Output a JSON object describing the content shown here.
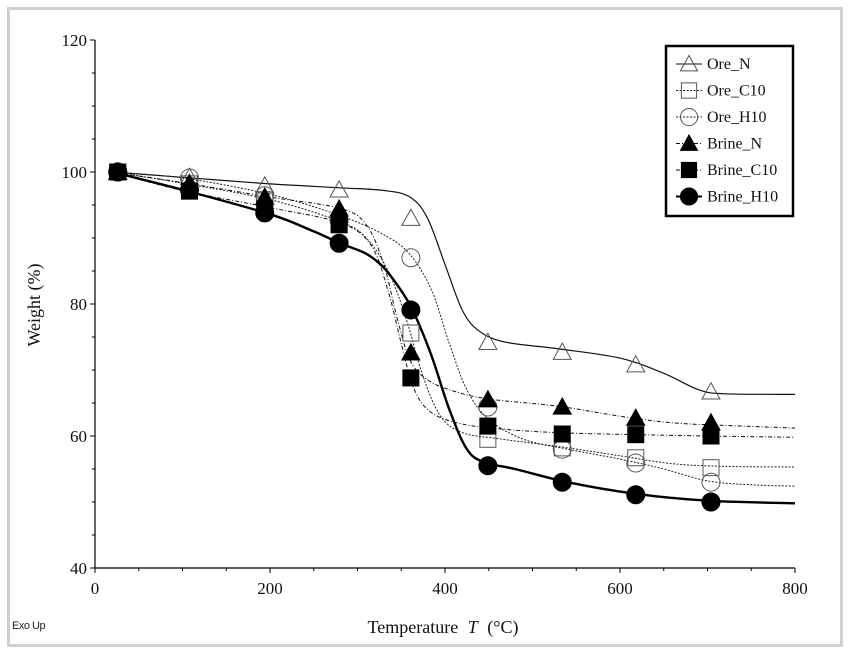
{
  "footer": {
    "exo_label": "Exo Up"
  },
  "chart_data": {
    "type": "line",
    "title": "",
    "xlabel": "Temperature",
    "xlabel_var": "T",
    "xlabel_unit": "(°C)",
    "ylabel": "Weight  (%)",
    "xlim": [
      0,
      800
    ],
    "ylim": [
      40,
      120
    ],
    "xticks": [
      0,
      200,
      400,
      600,
      800
    ],
    "yticks": [
      40,
      60,
      80,
      100,
      120
    ],
    "x_minor_step": 50,
    "y_minor_step": 5,
    "grid": false,
    "legend_position": "top-right",
    "marker_x": [
      26,
      108,
      194,
      279,
      361,
      449,
      534,
      618,
      704
    ],
    "series": [
      {
        "name": "Ore_N",
        "marker": "triangle-open",
        "line": "solid-thin",
        "values": [
          100,
          99.2,
          97.9,
          97.3,
          93.0,
          74.2,
          72.7,
          70.8,
          66.7
        ],
        "curve": [
          [
            20,
            100
          ],
          [
            100,
            99.2
          ],
          [
            200,
            98.2
          ],
          [
            280,
            97.6
          ],
          [
            330,
            97.2
          ],
          [
            360,
            96.2
          ],
          [
            380,
            93
          ],
          [
            400,
            86
          ],
          [
            420,
            79
          ],
          [
            440,
            75.8
          ],
          [
            470,
            74.2
          ],
          [
            530,
            73.2
          ],
          [
            600,
            71.8
          ],
          [
            650,
            69.5
          ],
          [
            690,
            67
          ],
          [
            720,
            66.4
          ],
          [
            800,
            66.3
          ]
        ]
      },
      {
        "name": "Ore_C10",
        "marker": "square-open",
        "line": "dotted",
        "values": [
          100,
          98.2,
          95.8,
          92.1,
          75.6,
          59.5,
          58.2,
          56.7,
          55.2
        ],
        "curve": [
          [
            20,
            100
          ],
          [
            100,
            98.3
          ],
          [
            200,
            95.8
          ],
          [
            280,
            92.5
          ],
          [
            310,
            90
          ],
          [
            335,
            85
          ],
          [
            355,
            78
          ],
          [
            375,
            69
          ],
          [
            395,
            63
          ],
          [
            420,
            60.5
          ],
          [
            460,
            59.6
          ],
          [
            530,
            58.4
          ],
          [
            600,
            57
          ],
          [
            660,
            55.8
          ],
          [
            720,
            55.4
          ],
          [
            800,
            55.3
          ]
        ]
      },
      {
        "name": "Ore_H10",
        "marker": "circle-open",
        "line": "dotted",
        "values": [
          100,
          99.1,
          96.4,
          92.6,
          87.0,
          64.4,
          58.0,
          55.9,
          53.0
        ],
        "curve": [
          [
            20,
            100
          ],
          [
            100,
            99.1
          ],
          [
            200,
            96.6
          ],
          [
            280,
            93.4
          ],
          [
            330,
            90.5
          ],
          [
            360,
            87.5
          ],
          [
            385,
            82
          ],
          [
            405,
            74
          ],
          [
            425,
            67
          ],
          [
            450,
            62.5
          ],
          [
            490,
            59.5
          ],
          [
            540,
            58
          ],
          [
            600,
            56.5
          ],
          [
            650,
            55
          ],
          [
            700,
            53.2
          ],
          [
            750,
            52.6
          ],
          [
            800,
            52.4
          ]
        ]
      },
      {
        "name": "Brine_N",
        "marker": "triangle-filled",
        "line": "dashdot",
        "values": [
          100,
          98.3,
          96.2,
          94.4,
          72.6,
          65.5,
          64.4,
          62.7,
          62.0
        ],
        "curve": [
          [
            20,
            100
          ],
          [
            100,
            98.4
          ],
          [
            200,
            96.2
          ],
          [
            280,
            94.5
          ],
          [
            310,
            92
          ],
          [
            330,
            86
          ],
          [
            345,
            78
          ],
          [
            360,
            71.5
          ],
          [
            380,
            68.5
          ],
          [
            410,
            66.8
          ],
          [
            450,
            65.6
          ],
          [
            530,
            64.5
          ],
          [
            600,
            63
          ],
          [
            660,
            62
          ],
          [
            720,
            61.6
          ],
          [
            800,
            61.2
          ]
        ]
      },
      {
        "name": "Brine_C10",
        "marker": "square-filled",
        "line": "dashdot",
        "values": [
          100,
          97.1,
          94.4,
          92.0,
          68.8,
          61.5,
          60.3,
          60.2,
          60.0
        ],
        "curve": [
          [
            20,
            100
          ],
          [
            100,
            97.2
          ],
          [
            200,
            94.6
          ],
          [
            280,
            92.3
          ],
          [
            315,
            89
          ],
          [
            335,
            82
          ],
          [
            350,
            74
          ],
          [
            365,
            67
          ],
          [
            385,
            63.5
          ],
          [
            420,
            61.8
          ],
          [
            470,
            61
          ],
          [
            530,
            60.5
          ],
          [
            620,
            60.2
          ],
          [
            700,
            60
          ],
          [
            800,
            59.8
          ]
        ]
      },
      {
        "name": "Brine_H10",
        "marker": "circle-filled",
        "line": "solid-thick",
        "values": [
          100,
          97.3,
          93.8,
          89.2,
          79.1,
          55.5,
          53.0,
          51.1,
          50.0
        ],
        "curve": [
          [
            20,
            100
          ],
          [
            100,
            97.3
          ],
          [
            200,
            93.6
          ],
          [
            250,
            91
          ],
          [
            280,
            89.2
          ],
          [
            310,
            87.6
          ],
          [
            330,
            85.5
          ],
          [
            350,
            82
          ],
          [
            365,
            78.5
          ],
          [
            385,
            72
          ],
          [
            405,
            64
          ],
          [
            425,
            58
          ],
          [
            445,
            56
          ],
          [
            480,
            55
          ],
          [
            540,
            53
          ],
          [
            620,
            51.2
          ],
          [
            700,
            50.2
          ],
          [
            800,
            49.8
          ]
        ]
      }
    ]
  }
}
